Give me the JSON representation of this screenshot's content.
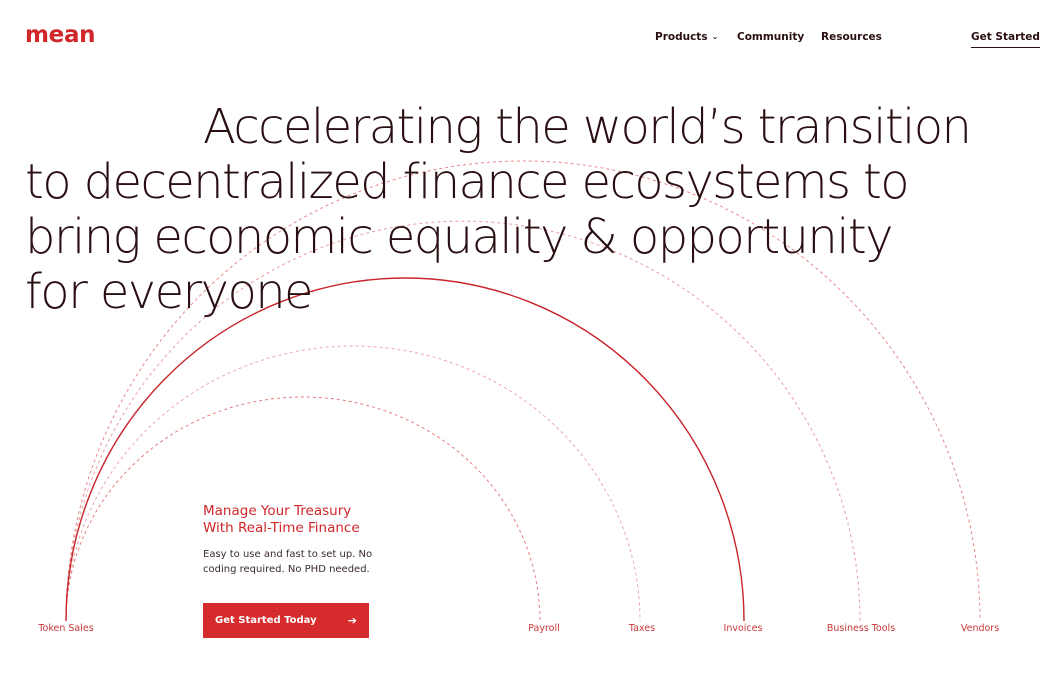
{
  "brand": {
    "logo_text": "mean",
    "accent_color": "#d1262a",
    "text_color": "#2a0f12"
  },
  "nav": {
    "products_label": "Products",
    "products_icon": "chevron-down-icon",
    "community_label": "Community",
    "resources_label": "Resources",
    "get_started_label": "Get Started"
  },
  "hero": {
    "headline_lines": [
      "Accelerating the world’s transition",
      "to decentralized finance ecosystems to",
      "bring economic equality & opportunity",
      "for everyone"
    ]
  },
  "feature": {
    "title_lines": [
      "Manage Your Treasury",
      "With Real-Time Finance"
    ],
    "description_lines": [
      "Easy to use and fast to set up. No",
      "coding required. No PHD needed."
    ],
    "cta_label": "Get Started Today",
    "cta_icon": "arrow-right-icon",
    "cta_color": "#d62b2c"
  },
  "arc_labels": {
    "token_sales": "Token Sales",
    "payroll": "Payroll",
    "taxes": "Taxes",
    "invoices": "Invoices",
    "business_tools": "Business Tools",
    "vendors": "Vendors"
  }
}
